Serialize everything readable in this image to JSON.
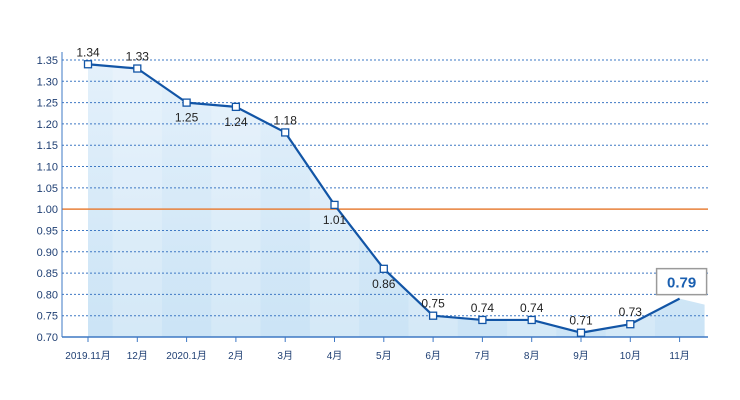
{
  "chart_data": {
    "type": "line",
    "title": "",
    "xlabel": "",
    "ylabel": "",
    "categories": [
      "2019.11月",
      "12月",
      "2020.1月",
      "2月",
      "3月",
      "4月",
      "5月",
      "6月",
      "7月",
      "8月",
      "9月",
      "10月",
      "11月"
    ],
    "series": [
      {
        "values": [
          1.34,
          1.33,
          1.25,
          1.24,
          1.18,
          1.01,
          0.86,
          0.75,
          0.74,
          0.74,
          0.71,
          0.73,
          0.79
        ]
      }
    ],
    "data_labels": [
      "1.34",
      "1.33",
      "1.25",
      "1.24",
      "1.18",
      "1.01",
      "0.86",
      "0.75",
      "0.74",
      "0.74",
      "0.71",
      "0.73",
      "0.79"
    ],
    "yticks": [
      "0.70",
      "0.75",
      "0.80",
      "0.85",
      "0.90",
      "0.95",
      "1.00",
      "1.05",
      "1.10",
      "1.15",
      "1.20",
      "1.25",
      "1.30",
      "1.35"
    ],
    "ylim": [
      0.7,
      1.35
    ],
    "reference_line": {
      "value": 1.0
    },
    "grid": true,
    "colors": {
      "line": "#1255a6",
      "reference": "#e8803a",
      "grid": "#3e78c4",
      "axis_text": "#1f3f73",
      "highlight_box_border": "#9a9a9a",
      "highlight_text": "#1a5fb0"
    }
  }
}
